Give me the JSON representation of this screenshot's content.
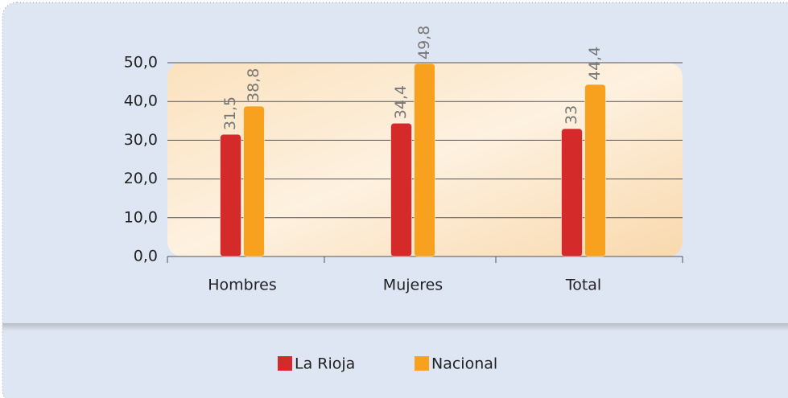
{
  "chart_data": {
    "type": "bar",
    "categories": [
      "Hombres",
      "Mujeres",
      "Total"
    ],
    "series": [
      {
        "name": "La Rioja",
        "color": "#d42a2a",
        "values": [
          31.5,
          34.4,
          33
        ],
        "value_labels": [
          "31,5",
          "34,4",
          "33"
        ]
      },
      {
        "name": "Nacional",
        "color": "#f7a11e",
        "values": [
          38.8,
          49.8,
          44.4
        ],
        "value_labels": [
          "38,8",
          "49,8",
          "44,4"
        ]
      }
    ],
    "ylim": [
      0,
      50
    ],
    "yticks": [
      {
        "value": 0,
        "label": "0,0"
      },
      {
        "value": 10,
        "label": "10,0"
      },
      {
        "value": 20,
        "label": "20,0"
      },
      {
        "value": 30,
        "label": "30,0"
      },
      {
        "value": 40,
        "label": "40,0"
      },
      {
        "value": 50,
        "label": "50,0"
      }
    ],
    "grid": true,
    "legend": "bottom"
  }
}
